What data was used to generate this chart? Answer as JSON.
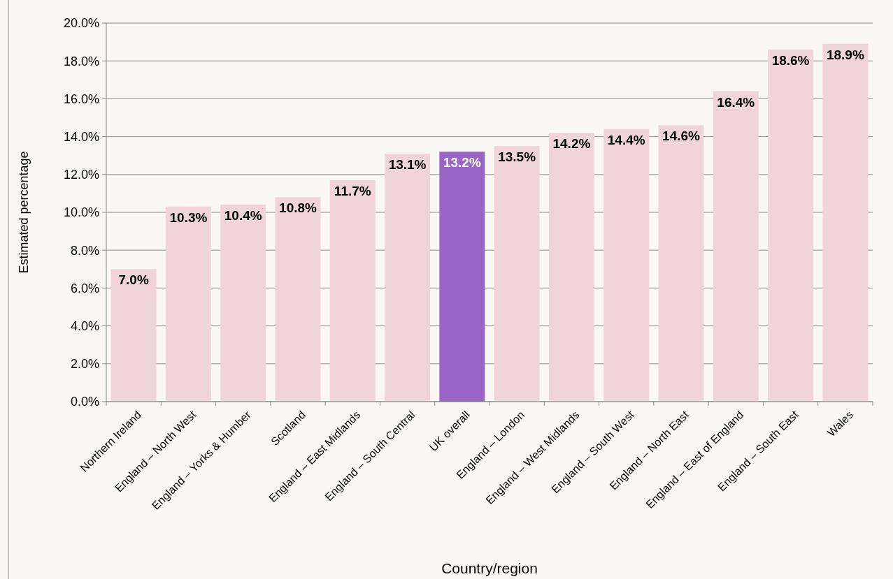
{
  "chart_data": {
    "type": "bar",
    "xlabel": "Country/region",
    "ylabel": "Estimated percentage",
    "categories": [
      "Northern Ireland",
      "England – North West",
      "England – Yorks & Humber",
      "Scotland",
      "England – East Midlands",
      "England – South Central",
      "UK overall",
      "England – London",
      "England – West Midlands",
      "England – South West",
      "England – North East",
      "England – East of England",
      "England – South East",
      "Wales"
    ],
    "values": [
      7.0,
      10.3,
      10.4,
      10.8,
      11.7,
      13.1,
      13.2,
      13.5,
      14.2,
      14.4,
      14.6,
      16.4,
      18.6,
      18.9
    ],
    "value_labels": [
      "7.0%",
      "10.3%",
      "10.4%",
      "10.8%",
      "11.7%",
      "13.1%",
      "13.2%",
      "13.5%",
      "14.2%",
      "14.4%",
      "14.6%",
      "16.4%",
      "18.6%",
      "18.9%"
    ],
    "colors": [
      "#efd5da",
      "#efd5da",
      "#efd5da",
      "#efd5da",
      "#efd5da",
      "#efd5da",
      "#9966c8",
      "#efd5da",
      "#efd5da",
      "#efd5da",
      "#efd5da",
      "#efd5da",
      "#efd5da",
      "#efd5da"
    ],
    "ylim": [
      0,
      20
    ],
    "yticks": [
      {
        "value": 0,
        "label": "0.0%"
      },
      {
        "value": 2,
        "label": "2.0%"
      },
      {
        "value": 4,
        "label": "4.0%"
      },
      {
        "value": 6,
        "label": "6.0%"
      },
      {
        "value": 8,
        "label": "8.0%"
      },
      {
        "value": 10,
        "label": "10.0%"
      },
      {
        "value": 12,
        "label": "12.0%"
      },
      {
        "value": 14,
        "label": "14.0%"
      },
      {
        "value": 16,
        "label": "16.0%"
      },
      {
        "value": 18,
        "label": "18.0%"
      },
      {
        "value": 20,
        "label": "20.0%"
      }
    ],
    "grid": "y"
  }
}
